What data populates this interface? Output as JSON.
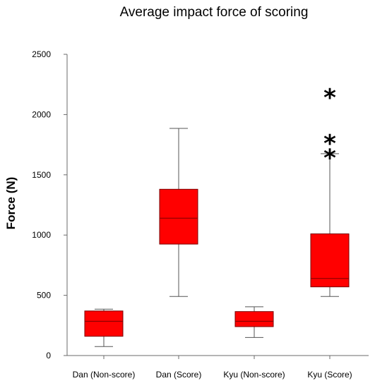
{
  "chart_data": {
    "type": "box",
    "title": "Average impact force of scoring",
    "xlabel": "",
    "ylabel": "Force (N)",
    "ylim": [
      0,
      2500
    ],
    "yticks": [
      "0",
      "500",
      "1000",
      "1500",
      "2000",
      "2500"
    ],
    "grid": false,
    "categories": [
      "Dan (Non-score)",
      "Dan (Score)",
      "Kyu (Non-score)",
      "Kyu (Score)"
    ],
    "boxes": [
      {
        "category": "Dan (Non-score)",
        "min": 75,
        "q1": 160,
        "median": 285,
        "q3": 370,
        "max": 385,
        "outliers": []
      },
      {
        "category": "Dan (Score)",
        "min": 490,
        "q1": 925,
        "median": 1140,
        "q3": 1380,
        "max": 1885,
        "outliers": []
      },
      {
        "category": "Kyu (Non-score)",
        "min": 150,
        "q1": 240,
        "median": 285,
        "q3": 365,
        "max": 405,
        "outliers": []
      },
      {
        "category": "Kyu (Score)",
        "min": 490,
        "q1": 570,
        "median": 640,
        "q3": 1010,
        "max": 1675,
        "outliers": [
          1700,
          1820,
          2200
        ]
      }
    ],
    "colors": {
      "box_fill": "#ff0000",
      "box_edge": "#7a0000",
      "whisker": "#555555",
      "axis": "#6b6b6b",
      "outlier": "#000000"
    },
    "outlier_marker": "*"
  }
}
